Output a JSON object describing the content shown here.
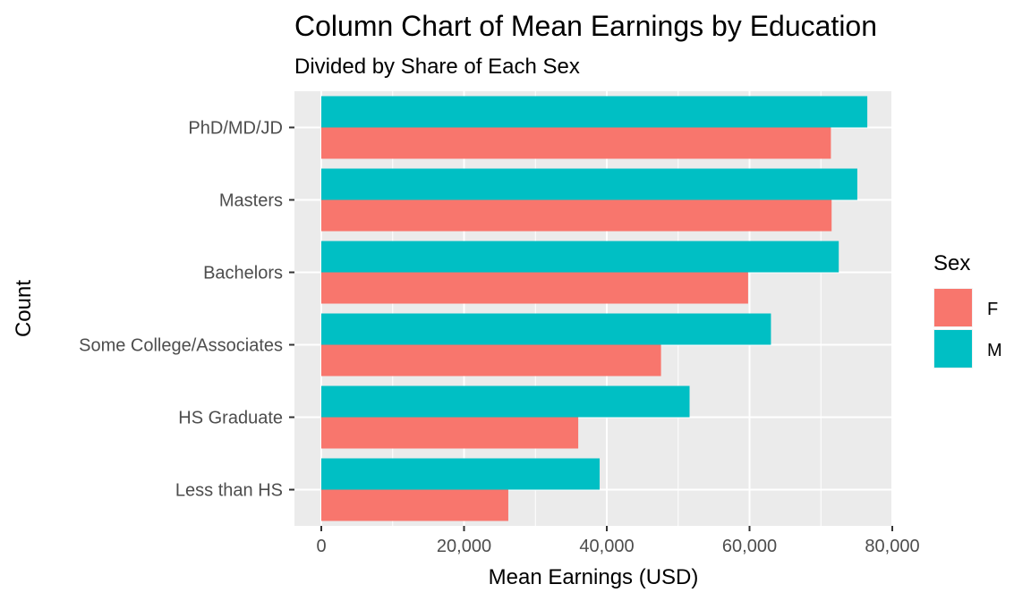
{
  "chart_data": {
    "type": "bar",
    "orientation": "horizontal",
    "title": "Column Chart of Mean Earnings by Education",
    "subtitle": "Divided by Share of Each Sex",
    "xlabel": "Mean Earnings (USD)",
    "ylabel": "Count",
    "categories": [
      "Less than HS",
      "HS Graduate",
      "Some College/Associates",
      "Bachelors",
      "Masters",
      "PhD/MD/JD"
    ],
    "series": [
      {
        "name": "F",
        "color": "#F8766D",
        "values": [
          26200,
          36000,
          47600,
          59800,
          71500,
          71400
        ]
      },
      {
        "name": "M",
        "color": "#00BFC4",
        "values": [
          39000,
          51600,
          63000,
          72500,
          75100,
          76500
        ]
      }
    ],
    "xlim": [
      -3700,
      80000
    ],
    "x_ticks": [
      0,
      20000,
      40000,
      60000,
      80000
    ],
    "x_tick_labels": [
      "0",
      "20,000",
      "40,000",
      "60,000",
      "80,000"
    ],
    "grid": true,
    "panel_background": "#EBEBEB",
    "legend": {
      "title": "Sex",
      "position": "right",
      "labels": [
        "F",
        "M"
      ]
    }
  }
}
